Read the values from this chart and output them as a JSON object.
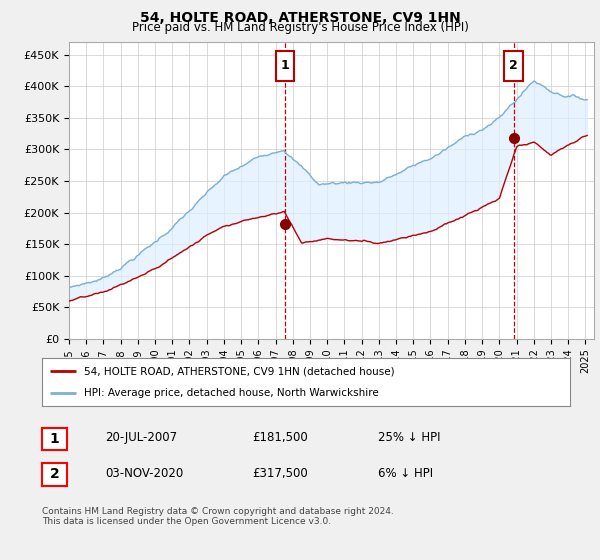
{
  "title": "54, HOLTE ROAD, ATHERSTONE, CV9 1HN",
  "subtitle": "Price paid vs. HM Land Registry's House Price Index (HPI)",
  "ylabel_ticks": [
    "£0",
    "£50K",
    "£100K",
    "£150K",
    "£200K",
    "£250K",
    "£300K",
    "£350K",
    "£400K",
    "£450K"
  ],
  "ylabel_values": [
    0,
    50000,
    100000,
    150000,
    200000,
    250000,
    300000,
    350000,
    400000,
    450000
  ],
  "ylim": [
    0,
    470000
  ],
  "xlim_start": 1995.0,
  "xlim_end": 2025.5,
  "marker1_x": 2007.55,
  "marker1_y": 181500,
  "marker1_label": "1",
  "marker2_x": 2020.84,
  "marker2_y": 317500,
  "marker2_label": "2",
  "hpi_color": "#7bafd4",
  "hpi_fill_color": "#ddeeff",
  "price_color": "#bb0000",
  "marker_color": "#bb0000",
  "vline_color": "#cc0000",
  "legend_label1": "54, HOLTE ROAD, ATHERSTONE, CV9 1HN (detached house)",
  "legend_label2": "HPI: Average price, detached house, North Warwickshire",
  "table_row1": [
    "1",
    "20-JUL-2007",
    "£181,500",
    "25% ↓ HPI"
  ],
  "table_row2": [
    "2",
    "03-NOV-2020",
    "£317,500",
    "6% ↓ HPI"
  ],
  "footnote": "Contains HM Land Registry data © Crown copyright and database right 2024.\nThis data is licensed under the Open Government Licence v3.0.",
  "background_color": "#f0f0f0",
  "plot_bg_color": "#ffffff",
  "grid_color": "#cccccc"
}
